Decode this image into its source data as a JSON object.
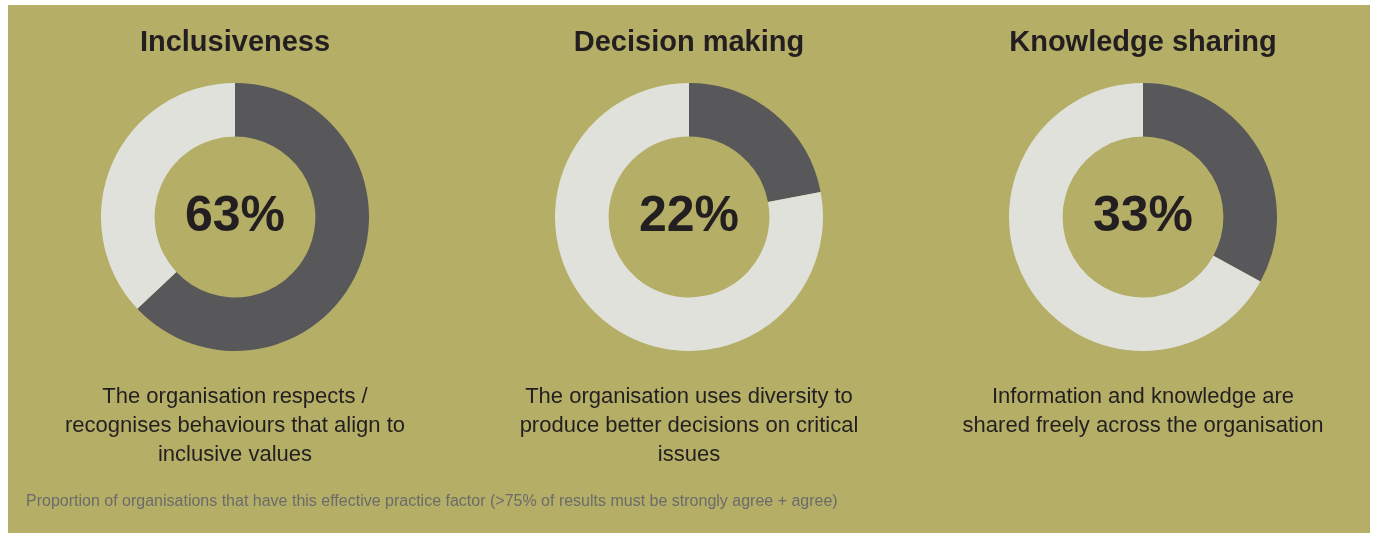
{
  "chart_data": [
    {
      "type": "donut",
      "title": "Inclusiveness",
      "subtitle": "The organisation respects / recognises behaviours that align to inclusive values",
      "categories": [
        null,
        null
      ],
      "values": [
        63,
        37
      ],
      "colors": [
        "#58585a",
        "#e1e1dc"
      ],
      "value_labels": [
        "63%",
        null
      ],
      "annotations": [
        "Proportion of organisations that have this effective practice factor (>75% of results must be strongly agree + agree)"
      ]
    },
    {
      "type": "donut",
      "title": "Decision making",
      "subtitle": "The organisation uses diversity to produce better decisions on critical issues",
      "categories": [
        null,
        null
      ],
      "values": [
        22,
        78
      ],
      "colors": [
        "#58585a",
        "#e1e1dc"
      ],
      "value_labels": [
        "22%",
        null
      ]
    },
    {
      "type": "donut",
      "title": "Knowledge sharing",
      "subtitle": "Information and knowledge are shared freely across the organisation",
      "categories": [
        null,
        null
      ],
      "values": [
        33,
        67
      ],
      "colors": [
        "#58585a",
        "#e1e1dc"
      ],
      "value_labels": [
        "33%",
        null
      ]
    }
  ]
}
